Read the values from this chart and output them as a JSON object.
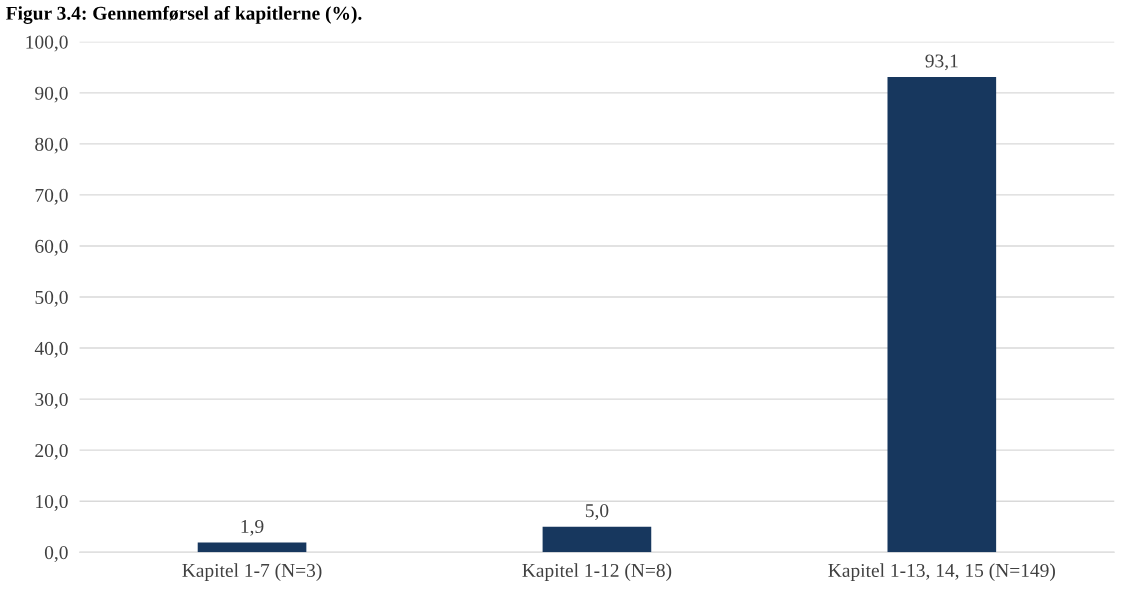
{
  "chart_data": {
    "type": "bar",
    "title": "Figur 3.4: Gennemførsel af kapitlerne (%).",
    "categories": [
      "Kapitel 1-7 (N=3)",
      "Kapitel 1-12 (N=8)",
      "Kapitel 1-13, 14, 15 (N=149)"
    ],
    "values": [
      1.9,
      5.0,
      93.1
    ],
    "value_labels": [
      "1,9",
      "5,0",
      "93,1"
    ],
    "color": "#17375e",
    "ylim": [
      0,
      100
    ],
    "yticks": [
      {
        "value": 0,
        "label": "0,0"
      },
      {
        "value": 10,
        "label": "10,0"
      },
      {
        "value": 20,
        "label": "20,0"
      },
      {
        "value": 30,
        "label": "30,0"
      },
      {
        "value": 40,
        "label": "40,0"
      },
      {
        "value": 50,
        "label": "50,0"
      },
      {
        "value": 60,
        "label": "60,0"
      },
      {
        "value": 70,
        "label": "70,0"
      },
      {
        "value": 80,
        "label": "80,0"
      },
      {
        "value": 90,
        "label": "90,0"
      },
      {
        "value": 100,
        "label": "100,0"
      }
    ],
    "grid": "y",
    "legend": false
  }
}
